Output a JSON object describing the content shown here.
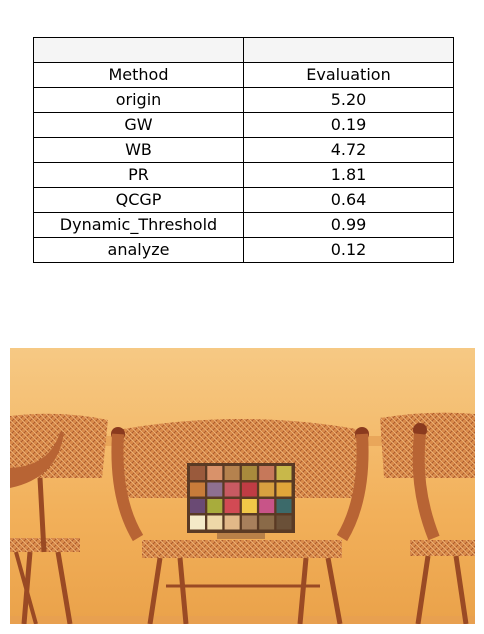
{
  "chart_data": {
    "type": "table",
    "header_blank": [
      "",
      ""
    ],
    "columns": [
      "Method",
      "Evaluation"
    ],
    "rows": [
      [
        "origin",
        "5.20"
      ],
      [
        "GW",
        "0.19"
      ],
      [
        "WB",
        "4.72"
      ],
      [
        "PR",
        "1.81"
      ],
      [
        "QCGP",
        "0.64"
      ],
      [
        "Dynamic_Threshold",
        "0.99"
      ],
      [
        "analyze",
        "0.12"
      ]
    ]
  },
  "photo": {
    "subject": "three wicker chairs with a color checker chart",
    "colors": {
      "wall": "#f2b05a",
      "wall_top": "#f6c984",
      "wicker": "#d98a4a",
      "wood": "#9a4a24",
      "shadow": "#c8803c"
    },
    "checker_colors": [
      [
        "#9a5a3c",
        "#d9926a",
        "#b5824e",
        "#a88a3c",
        "#c6785a",
        "#c8b84a"
      ],
      [
        "#c87c3a",
        "#8e7090",
        "#c85a62",
        "#c03c44",
        "#d8a040",
        "#e0a63a"
      ],
      [
        "#6a4a74",
        "#a8ac3c",
        "#d24a54",
        "#f0c848",
        "#c85488",
        "#3c6a6a"
      ],
      [
        "#f4eac8",
        "#eed8a8",
        "#e2b888",
        "#a8805c",
        "#8a6a48",
        "#6a5038"
      ]
    ]
  }
}
